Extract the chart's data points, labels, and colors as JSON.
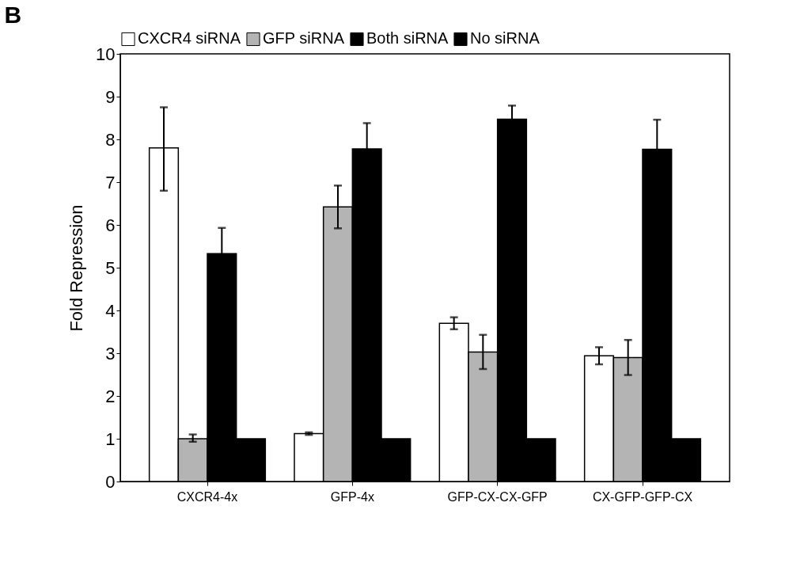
{
  "chart_data": {
    "type": "bar",
    "title": "B",
    "ylabel": "Fold Repression",
    "categories": [
      "CXCR4-4x",
      "GFP-4x",
      "GFP-CX-CX-GFP",
      "CX-GFP-GFP-CX"
    ],
    "series": [
      {
        "name": "CXCR4 siRNA",
        "color": "#ffffff",
        "values": [
          7.8,
          1.12,
          3.7,
          2.94
        ],
        "errors": [
          [
            6.8,
            8.75
          ],
          0.03,
          0.14,
          0.2
        ]
      },
      {
        "name": "GFP siRNA",
        "color": "#b4b4b4",
        "values": [
          1.0,
          6.42,
          3.03,
          2.9
        ],
        "errors": [
          [
            0.93,
            1.1
          ],
          0.5,
          0.4,
          0.41
        ]
      },
      {
        "name": "Both siRNA",
        "color": "#000000",
        "values": [
          5.33,
          7.78,
          8.47,
          7.77
        ],
        "errors": [
          0.6,
          0.6,
          0.32,
          0.69
        ]
      },
      {
        "name": "No siRNA",
        "color": "#000000",
        "values": [
          1.0,
          1.0,
          1.0,
          1.0
        ]
      }
    ],
    "ylim": [
      0,
      10
    ],
    "yticks": [
      0,
      1,
      2,
      3,
      4,
      5,
      6,
      7,
      8,
      9,
      10
    ],
    "grid": false,
    "legend": "top"
  }
}
